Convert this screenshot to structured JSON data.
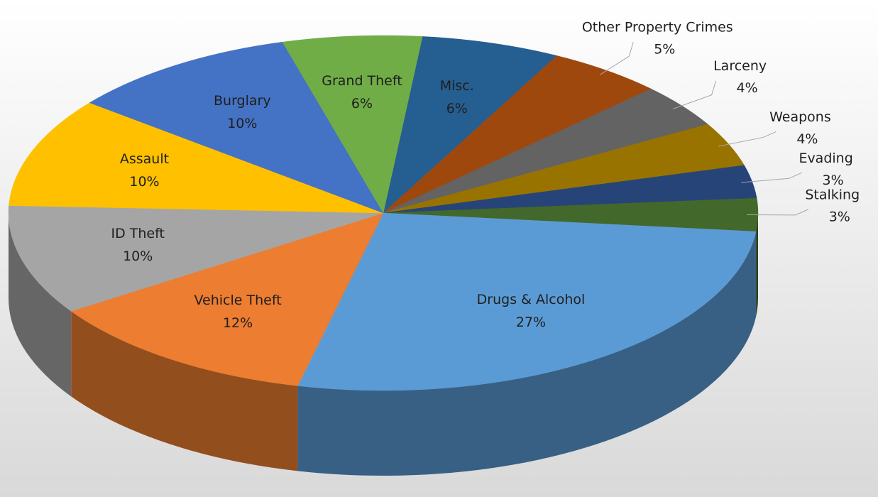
{
  "chart_data": {
    "type": "pie",
    "categories": [
      "Misc.",
      "Other Property Crimes",
      "Larceny",
      "Weapons",
      "Evading",
      "Stalking",
      "Drugs & Alcohol",
      "Vehicle Theft",
      "ID Theft",
      "Assault",
      "Burglary",
      "Grand Theft"
    ],
    "values": [
      6,
      5,
      4,
      4,
      3,
      3,
      27,
      12,
      10,
      10,
      10,
      6
    ],
    "value_labels": [
      "6%",
      "5%",
      "4%",
      "4%",
      "3%",
      "3%",
      "27%",
      "12%",
      "10%",
      "10%",
      "10%",
      "6%"
    ],
    "colors": [
      "#255e91",
      "#9e480e",
      "#636363",
      "#997300",
      "#264478",
      "#43682b",
      "#5b9bd5",
      "#ed7d31",
      "#a5a5a5",
      "#ffc000",
      "#4472c4",
      "#70ad47"
    ]
  }
}
